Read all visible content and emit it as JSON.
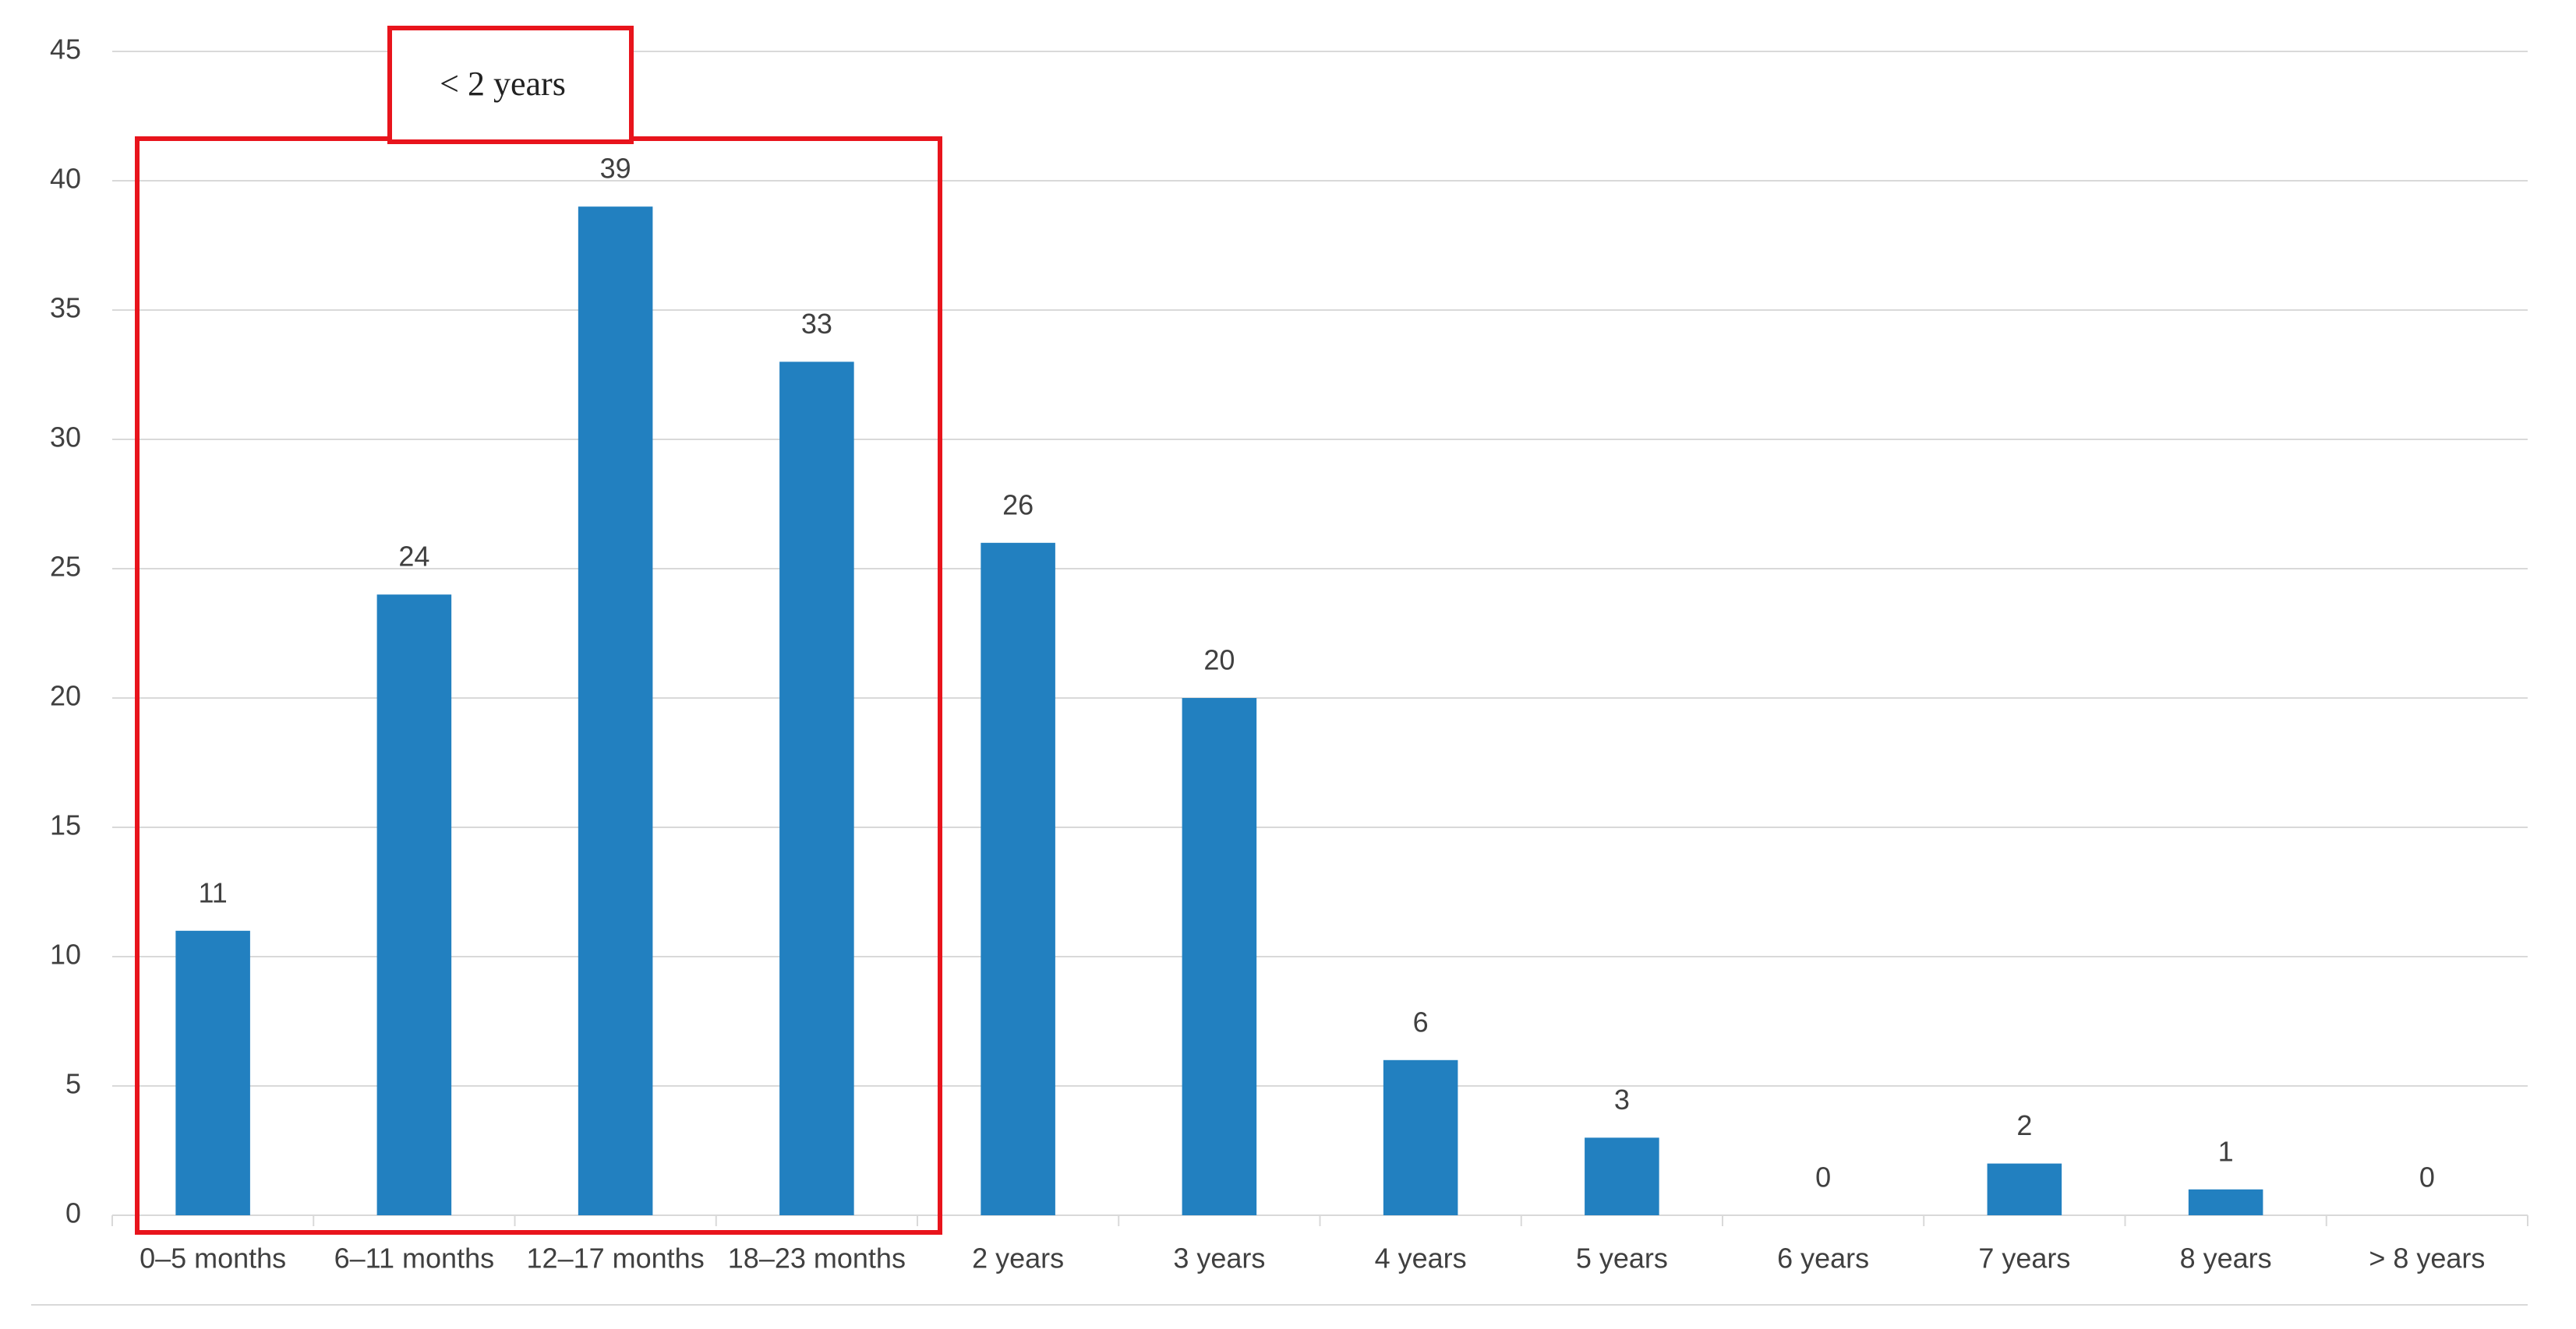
{
  "chart_data": {
    "type": "bar",
    "categories": [
      "0–5 months",
      "6–11 months",
      "12–17 months",
      "18–23 months",
      "2 years",
      "3 years",
      "4 years",
      "5 years",
      "6 years",
      "7 years",
      "8 years",
      "> 8 years"
    ],
    "values": [
      11,
      24,
      39,
      33,
      26,
      20,
      6,
      3,
      0,
      2,
      1,
      0
    ],
    "color": "#2280c0",
    "ylim": [
      0,
      45
    ],
    "yticks": [
      0,
      5,
      10,
      15,
      20,
      25,
      30,
      35,
      40,
      45
    ],
    "grid": true,
    "annotation": "< 2 years"
  }
}
